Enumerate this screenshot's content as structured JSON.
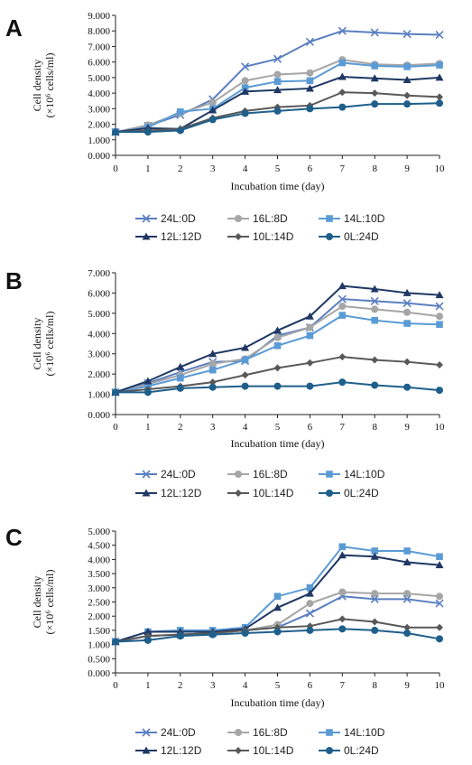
{
  "chart_data": [
    {
      "type": "line",
      "panel": "A",
      "xlabel": "Incubation time (day)",
      "ylabel_line1": "Cell density",
      "ylabel_line2": "(×10⁶ cells/ml)",
      "x": [
        0,
        1,
        2,
        3,
        4,
        5,
        6,
        7,
        8,
        9,
        10
      ],
      "x_ticks": [
        "0",
        "1",
        "2",
        "3",
        "4",
        "5",
        "6",
        "7",
        "8",
        "9",
        "10"
      ],
      "ylim": [
        0,
        9
      ],
      "y_ticks": [
        "0.000",
        "1.000",
        "2.000",
        "3.000",
        "4.000",
        "5.000",
        "6.000",
        "7.000",
        "8.000",
        "9.000"
      ],
      "series": [
        {
          "name": "24L:0D",
          "color": "#5a7fc0",
          "marker": "x",
          "values": [
            1.5,
            1.9,
            2.6,
            3.6,
            5.7,
            6.2,
            7.3,
            8.0,
            7.9,
            7.8,
            7.75
          ]
        },
        {
          "name": "16L:8D",
          "color": "#a6a6a6",
          "marker": "circle",
          "values": [
            1.5,
            1.95,
            2.7,
            3.4,
            4.8,
            5.2,
            5.3,
            6.15,
            5.85,
            5.8,
            5.9
          ]
        },
        {
          "name": "14L:10D",
          "color": "#5b9bd5",
          "marker": "square",
          "values": [
            1.5,
            1.8,
            2.8,
            3.0,
            4.35,
            4.75,
            4.8,
            5.95,
            5.75,
            5.7,
            5.8
          ]
        },
        {
          "name": "12L:12D",
          "color": "#1f3864",
          "marker": "triangle",
          "values": [
            1.5,
            1.75,
            1.7,
            2.9,
            4.1,
            4.2,
            4.3,
            5.05,
            4.95,
            4.85,
            5.0
          ]
        },
        {
          "name": "10L:14D",
          "color": "#595959",
          "marker": "diamond",
          "values": [
            1.5,
            1.6,
            1.7,
            2.4,
            2.85,
            3.1,
            3.2,
            4.05,
            4.0,
            3.85,
            3.75
          ]
        },
        {
          "name": "0L:24D",
          "color": "#1f5f8b",
          "marker": "circle",
          "values": [
            1.5,
            1.5,
            1.6,
            2.3,
            2.7,
            2.85,
            3.0,
            3.1,
            3.3,
            3.3,
            3.35
          ]
        }
      ],
      "legend_position": "bottom"
    },
    {
      "type": "line",
      "panel": "B",
      "xlabel": "Incubation time (day)",
      "ylabel_line1": "Cell density",
      "ylabel_line2": "(×10⁶ cells/ml)",
      "x": [
        0,
        1,
        2,
        3,
        4,
        5,
        6,
        7,
        8,
        9,
        10
      ],
      "x_ticks": [
        "0",
        "1",
        "2",
        "3",
        "4",
        "5",
        "6",
        "7",
        "8",
        "9",
        "10"
      ],
      "ylim": [
        0,
        7
      ],
      "y_ticks": [
        "0.000",
        "1.000",
        "2.000",
        "3.000",
        "4.000",
        "5.000",
        "6.000",
        "7.000"
      ],
      "series": [
        {
          "name": "24L:0D",
          "color": "#5a7fc0",
          "marker": "x",
          "values": [
            1.1,
            1.55,
            2.1,
            2.6,
            2.65,
            3.9,
            4.3,
            5.7,
            5.6,
            5.5,
            5.35
          ]
        },
        {
          "name": "16L:8D",
          "color": "#a6a6a6",
          "marker": "circle",
          "values": [
            1.1,
            1.5,
            1.95,
            2.5,
            2.75,
            3.8,
            4.3,
            5.35,
            5.2,
            5.05,
            4.85
          ]
        },
        {
          "name": "14L:10D",
          "color": "#5b9bd5",
          "marker": "square",
          "values": [
            1.1,
            1.4,
            1.8,
            2.2,
            2.7,
            3.4,
            3.9,
            4.9,
            4.65,
            4.5,
            4.45
          ]
        },
        {
          "name": "12L:12D",
          "color": "#1f3864",
          "marker": "triangle",
          "values": [
            1.1,
            1.65,
            2.35,
            3.0,
            3.3,
            4.15,
            4.85,
            6.35,
            6.2,
            6.0,
            5.9
          ]
        },
        {
          "name": "10L:14D",
          "color": "#595959",
          "marker": "diamond",
          "values": [
            1.1,
            1.25,
            1.4,
            1.6,
            1.95,
            2.3,
            2.55,
            2.85,
            2.7,
            2.6,
            2.45
          ]
        },
        {
          "name": "0L:24D",
          "color": "#1f5f8b",
          "marker": "circle",
          "values": [
            1.1,
            1.1,
            1.3,
            1.35,
            1.4,
            1.4,
            1.4,
            1.6,
            1.45,
            1.35,
            1.2
          ]
        }
      ],
      "legend_position": "bottom"
    },
    {
      "type": "line",
      "panel": "C",
      "xlabel": "Incubation time (day)",
      "ylabel_line1": "Cell density",
      "ylabel_line2": "(×10⁶ cells/ml)",
      "x": [
        0,
        1,
        2,
        3,
        4,
        5,
        6,
        7,
        8,
        9,
        10
      ],
      "x_ticks": [
        "0",
        "1",
        "2",
        "3",
        "4",
        "5",
        "6",
        "7",
        "8",
        "9",
        "10"
      ],
      "ylim": [
        0,
        5
      ],
      "y_ticks": [
        "0.000",
        "0.500",
        "1.000",
        "1.500",
        "2.000",
        "2.500",
        "3.000",
        "3.500",
        "4.000",
        "4.500",
        "5.000"
      ],
      "series": [
        {
          "name": "24L:0D",
          "color": "#5a7fc0",
          "marker": "x",
          "values": [
            1.1,
            1.3,
            1.35,
            1.4,
            1.5,
            1.6,
            2.1,
            2.7,
            2.6,
            2.6,
            2.45
          ]
        },
        {
          "name": "16L:8D",
          "color": "#a6a6a6",
          "marker": "circle",
          "values": [
            1.1,
            1.3,
            1.35,
            1.4,
            1.5,
            1.7,
            2.45,
            2.85,
            2.8,
            2.8,
            2.7
          ]
        },
        {
          "name": "14L:10D",
          "color": "#5b9bd5",
          "marker": "square",
          "values": [
            1.1,
            1.45,
            1.5,
            1.5,
            1.6,
            2.7,
            3.0,
            4.45,
            4.3,
            4.3,
            4.1
          ]
        },
        {
          "name": "12L:12D",
          "color": "#1f3864",
          "marker": "triangle",
          "values": [
            1.1,
            1.45,
            1.45,
            1.45,
            1.55,
            2.3,
            2.8,
            4.15,
            4.1,
            3.9,
            3.8
          ]
        },
        {
          "name": "10L:14D",
          "color": "#595959",
          "marker": "diamond",
          "values": [
            1.1,
            1.3,
            1.35,
            1.4,
            1.5,
            1.6,
            1.65,
            1.9,
            1.8,
            1.6,
            1.6
          ]
        },
        {
          "name": "0L:24D",
          "color": "#1f5f8b",
          "marker": "circle",
          "values": [
            1.1,
            1.15,
            1.3,
            1.35,
            1.4,
            1.45,
            1.5,
            1.55,
            1.5,
            1.4,
            1.2
          ]
        }
      ],
      "legend_position": "bottom"
    }
  ]
}
